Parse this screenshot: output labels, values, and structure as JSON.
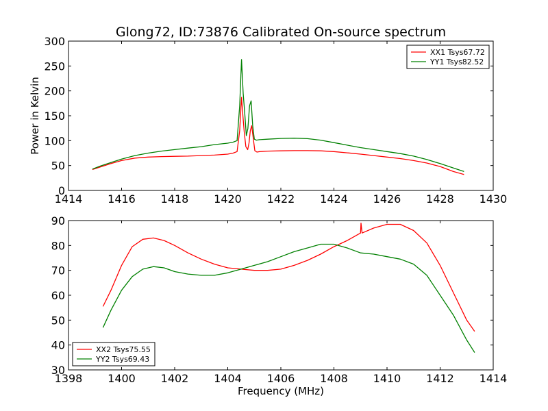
{
  "figure_title": "Glong72, ID:73876 Calibrated On-source spectrum",
  "chart_data": [
    {
      "type": "line",
      "title": "Glong72, ID:73876 Calibrated On-source spectrum",
      "xlabel": "",
      "ylabel": "Power in Kelvin",
      "xlim": [
        1414,
        1430
      ],
      "ylim": [
        0,
        300
      ],
      "xticks": [
        "1414",
        "1416",
        "1418",
        "1420",
        "1422",
        "1424",
        "1426",
        "1428",
        "1430"
      ],
      "yticks": [
        "0",
        "50",
        "100",
        "150",
        "200",
        "250",
        "300"
      ],
      "grid": false,
      "legend_position": "top-right",
      "series": [
        {
          "name": "XX1 Tsys67.72",
          "color": "#ff0000",
          "x": [
            1414.9,
            1415.2,
            1415.6,
            1416.0,
            1416.5,
            1417.0,
            1417.5,
            1418.0,
            1418.5,
            1419.0,
            1419.5,
            1420.0,
            1420.2,
            1420.35,
            1420.45,
            1420.52,
            1420.57,
            1420.62,
            1420.68,
            1420.75,
            1420.8,
            1420.85,
            1420.9,
            1420.96,
            1421.02,
            1421.1,
            1421.2,
            1421.5,
            1422.0,
            1422.5,
            1423.0,
            1423.5,
            1424.0,
            1424.5,
            1425.0,
            1425.5,
            1426.0,
            1426.5,
            1427.0,
            1427.5,
            1428.0,
            1428.5,
            1428.9
          ],
          "y": [
            42,
            47,
            54,
            60,
            65,
            67,
            68,
            68.5,
            69,
            70,
            71,
            73,
            75,
            78,
            120,
            187,
            150,
            118,
            88,
            82,
            95,
            120,
            130,
            105,
            80,
            77,
            78,
            79,
            79.5,
            80,
            80,
            79.5,
            78,
            75.5,
            73,
            70,
            67,
            64,
            60,
            55,
            48,
            38,
            32
          ]
        },
        {
          "name": "YY1 Tsys82.52",
          "color": "#008000",
          "x": [
            1414.9,
            1415.2,
            1415.6,
            1416.0,
            1416.5,
            1417.0,
            1417.5,
            1418.0,
            1418.5,
            1419.0,
            1419.5,
            1420.0,
            1420.2,
            1420.35,
            1420.45,
            1420.52,
            1420.58,
            1420.64,
            1420.7,
            1420.76,
            1420.82,
            1420.88,
            1420.94,
            1421.0,
            1421.08,
            1421.2,
            1421.5,
            1422.0,
            1422.5,
            1423.0,
            1423.5,
            1424.0,
            1424.5,
            1425.0,
            1425.5,
            1426.0,
            1426.5,
            1427.0,
            1427.5,
            1428.0,
            1428.5,
            1428.9
          ],
          "y": [
            43,
            49,
            56,
            63,
            70,
            75,
            79,
            82,
            85,
            88,
            92,
            95,
            97,
            100,
            170,
            263,
            195,
            155,
            110,
            125,
            170,
            180,
            130,
            103,
            101,
            102,
            103,
            104.5,
            105,
            104,
            101,
            96,
            91,
            86,
            82,
            78,
            74,
            69,
            62,
            54,
            45,
            38
          ]
        }
      ]
    },
    {
      "type": "line",
      "title": "",
      "xlabel": "Frequency (MHz)",
      "ylabel": "",
      "xlim": [
        1398,
        1414
      ],
      "ylim": [
        30,
        90
      ],
      "xticks": [
        "1398",
        "1400",
        "1402",
        "1404",
        "1406",
        "1408",
        "1410",
        "1412",
        "1414"
      ],
      "yticks": [
        "30",
        "40",
        "50",
        "60",
        "70",
        "80",
        "90"
      ],
      "grid": false,
      "legend_position": "bottom-left",
      "series": [
        {
          "name": "XX2 Tsys75.55",
          "color": "#ff0000",
          "x": [
            1399.3,
            1399.6,
            1400.0,
            1400.4,
            1400.8,
            1401.2,
            1401.6,
            1402.0,
            1402.5,
            1403.0,
            1403.5,
            1404.0,
            1404.5,
            1405.0,
            1405.5,
            1406.0,
            1406.5,
            1407.0,
            1407.5,
            1408.0,
            1408.5,
            1409.0,
            1409.02,
            1409.06,
            1409.5,
            1410.0,
            1410.5,
            1411.0,
            1411.5,
            1412.0,
            1412.5,
            1413.0,
            1413.3
          ],
          "y": [
            55.5,
            62,
            72,
            79.5,
            82.5,
            83,
            82,
            80,
            77,
            74.5,
            72.5,
            71,
            70.5,
            70,
            70,
            70.5,
            72,
            74,
            76.5,
            79.5,
            82,
            85,
            89,
            85,
            87,
            88.5,
            88.5,
            86,
            81,
            72,
            61,
            50,
            45.5
          ]
        },
        {
          "name": "YY2 Tsys69.43",
          "color": "#008000",
          "x": [
            1399.3,
            1399.6,
            1400.0,
            1400.4,
            1400.8,
            1401.2,
            1401.6,
            1402.0,
            1402.5,
            1403.0,
            1403.5,
            1404.0,
            1404.5,
            1405.0,
            1405.5,
            1406.0,
            1406.5,
            1407.0,
            1407.5,
            1408.0,
            1408.5,
            1409.0,
            1409.5,
            1410.0,
            1410.5,
            1411.0,
            1411.5,
            1412.0,
            1412.5,
            1413.0,
            1413.3
          ],
          "y": [
            47,
            54,
            62,
            67.5,
            70.5,
            71.5,
            71,
            69.5,
            68.5,
            68,
            68,
            69,
            70.5,
            72,
            73.5,
            75.5,
            77.5,
            79,
            80.5,
            80.5,
            79,
            77,
            76.5,
            75.5,
            74.5,
            72.5,
            68,
            60,
            52,
            42,
            37
          ]
        }
      ]
    }
  ]
}
